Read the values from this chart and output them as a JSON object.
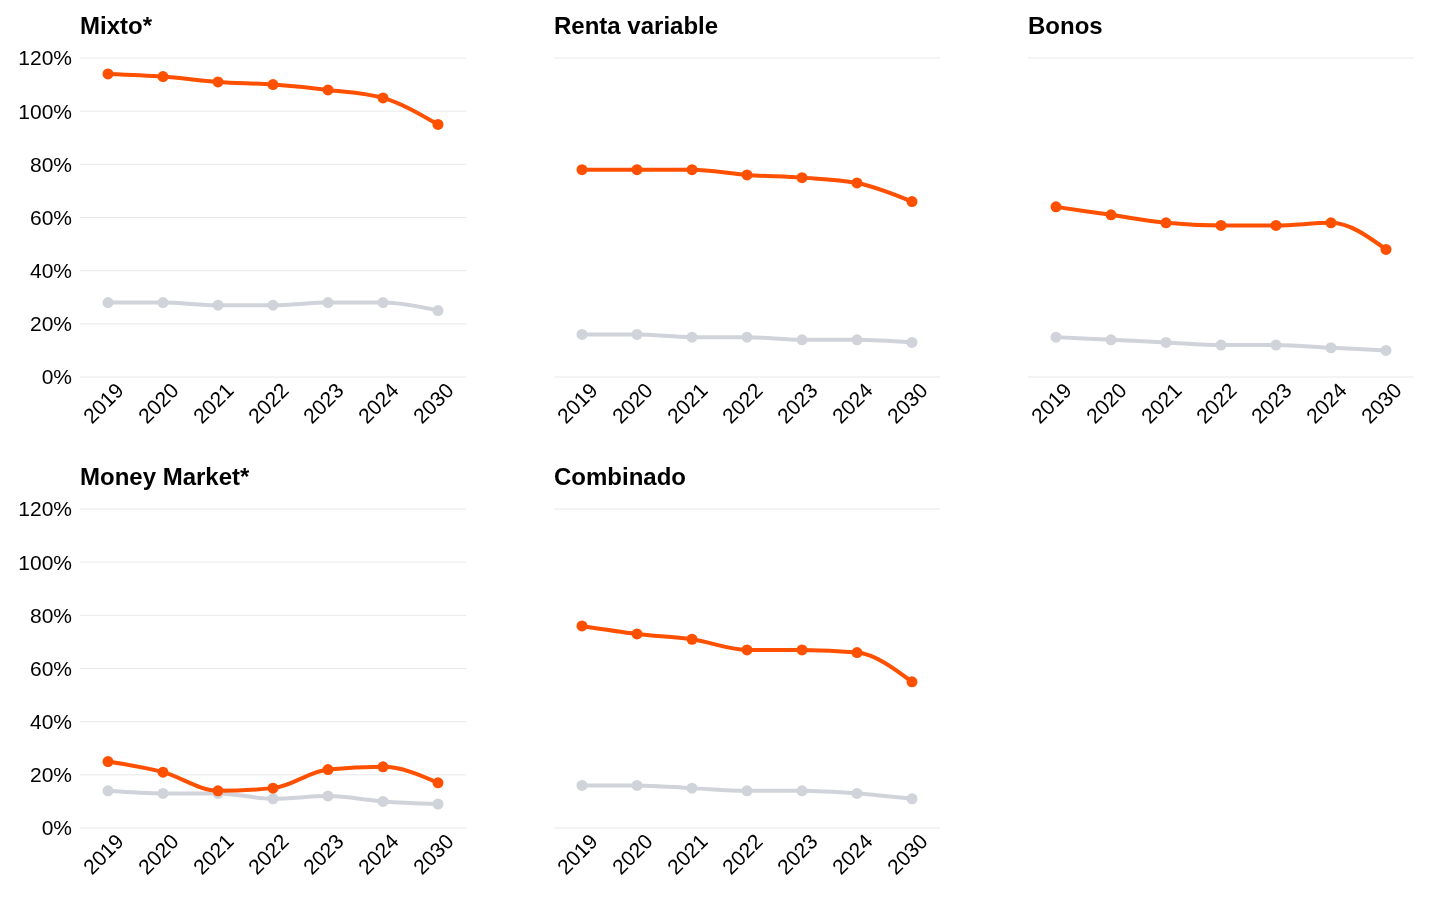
{
  "chart_data": [
    {
      "type": "line",
      "title": "Mixto*",
      "categories": [
        "2019",
        "2020",
        "2021",
        "2022",
        "2023",
        "2024",
        "2030"
      ],
      "series": [
        {
          "color": "#ff5000",
          "values": [
            114,
            113,
            111,
            110,
            108,
            105,
            95
          ]
        },
        {
          "color": "#d0d3d9",
          "values": [
            28,
            28,
            27,
            27,
            28,
            28,
            25
          ]
        }
      ],
      "ylim": [
        0,
        120
      ],
      "yticks": [
        {
          "value": 0,
          "label": "0%"
        },
        {
          "value": 20,
          "label": "20%"
        },
        {
          "value": 40,
          "label": "40%"
        },
        {
          "value": 60,
          "label": "60%"
        },
        {
          "value": 80,
          "label": "80%"
        },
        {
          "value": 100,
          "label": "100%"
        },
        {
          "value": 120,
          "label": "120%"
        }
      ],
      "grid": "y",
      "marker": "circle",
      "legend": false
    },
    {
      "type": "line",
      "title": "Renta variable",
      "categories": [
        "2019",
        "2020",
        "2021",
        "2022",
        "2023",
        "2024",
        "2030"
      ],
      "series": [
        {
          "color": "#ff5000",
          "values": [
            78,
            78,
            78,
            76,
            75,
            73,
            66
          ]
        },
        {
          "color": "#d0d3d9",
          "values": [
            16,
            16,
            15,
            15,
            14,
            14,
            13
          ]
        }
      ],
      "ylim": [
        0,
        120
      ],
      "yticks": [
        {
          "value": 0,
          "label": null
        },
        {
          "value": 20,
          "label": null
        },
        {
          "value": 40,
          "label": null
        },
        {
          "value": 60,
          "label": null
        },
        {
          "value": 80,
          "label": null
        },
        {
          "value": 100,
          "label": null
        },
        {
          "value": 120,
          "label": null
        }
      ],
      "grid": "y",
      "marker": "circle",
      "legend": false,
      "tick_labels": "x"
    },
    {
      "type": "line",
      "title": "Bonos",
      "categories": [
        "2019",
        "2020",
        "2021",
        "2022",
        "2023",
        "2024",
        "2030"
      ],
      "series": [
        {
          "color": "#ff5000",
          "values": [
            64,
            61,
            58,
            57,
            57,
            58,
            48
          ]
        },
        {
          "color": "#d0d3d9",
          "values": [
            15,
            14,
            13,
            12,
            12,
            11,
            10
          ]
        }
      ],
      "ylim": [
        0,
        120
      ],
      "yticks": [
        {
          "value": 0,
          "label": null
        },
        {
          "value": 20,
          "label": null
        },
        {
          "value": 40,
          "label": null
        },
        {
          "value": 60,
          "label": null
        },
        {
          "value": 80,
          "label": null
        },
        {
          "value": 100,
          "label": null
        },
        {
          "value": 120,
          "label": null
        }
      ],
      "grid": "y",
      "marker": "circle",
      "legend": false,
      "tick_labels": "x"
    },
    {
      "type": "line",
      "title": "Money Market*",
      "categories": [
        "2019",
        "2020",
        "2021",
        "2022",
        "2023",
        "2024",
        "2030"
      ],
      "series": [
        {
          "color": "#ff5000",
          "values": [
            25,
            21,
            14,
            15,
            22,
            23,
            17
          ]
        },
        {
          "color": "#d0d3d9",
          "values": [
            14,
            13,
            13,
            11,
            12,
            10,
            9
          ]
        }
      ],
      "ylim": [
        0,
        120
      ],
      "yticks": [
        {
          "value": 0,
          "label": "0%"
        },
        {
          "value": 20,
          "label": "20%"
        },
        {
          "value": 40,
          "label": "40%"
        },
        {
          "value": 60,
          "label": "60%"
        },
        {
          "value": 80,
          "label": "80%"
        },
        {
          "value": 100,
          "label": "100%"
        },
        {
          "value": 120,
          "label": "120%"
        }
      ],
      "grid": "y",
      "marker": "circle",
      "legend": false
    },
    {
      "type": "line",
      "title": "Combinado",
      "categories": [
        "2019",
        "2020",
        "2021",
        "2022",
        "2023",
        "2024",
        "2030"
      ],
      "series": [
        {
          "color": "#ff5000",
          "values": [
            76,
            73,
            71,
            67,
            67,
            66,
            55
          ]
        },
        {
          "color": "#d0d3d9",
          "values": [
            16,
            16,
            15,
            14,
            14,
            13,
            11
          ]
        }
      ],
      "ylim": [
        0,
        120
      ],
      "yticks": [
        {
          "value": 0,
          "label": null
        },
        {
          "value": 20,
          "label": null
        },
        {
          "value": 40,
          "label": null
        },
        {
          "value": 60,
          "label": null
        },
        {
          "value": 80,
          "label": null
        },
        {
          "value": 100,
          "label": null
        },
        {
          "value": 120,
          "label": null
        }
      ],
      "grid": "y",
      "marker": "circle",
      "legend": false,
      "tick_labels": "x"
    }
  ]
}
